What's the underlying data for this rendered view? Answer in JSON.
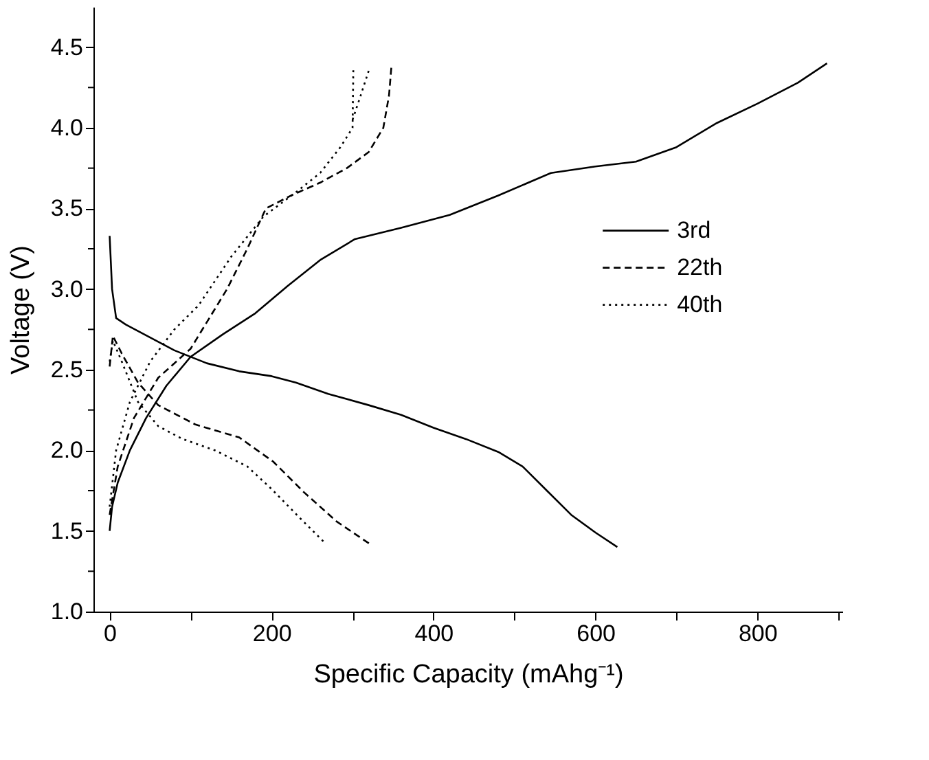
{
  "chart_data": {
    "type": "line",
    "xlabel": "Specific Capacity (mAhg⁻¹)",
    "ylabel": "Voltage (V)",
    "xlim": [
      -20,
      905
    ],
    "ylim": [
      1.0,
      4.75
    ],
    "xticks": [
      0,
      {
        "value": 100,
        "label": null
      },
      200,
      {
        "value": 300,
        "label": null
      },
      400,
      {
        "value": 500,
        "label": null
      },
      600,
      {
        "value": 700,
        "label": null
      },
      800,
      {
        "value": 900,
        "label": null
      }
    ],
    "yticks": [
      {
        "value": 1.0,
        "label": "1.0"
      },
      {
        "value": 1.25,
        "label": null
      },
      1.5,
      {
        "value": 1.75,
        "label": null
      },
      {
        "value": 2.0,
        "label": "2.0"
      },
      {
        "value": 2.25,
        "label": null
      },
      2.5,
      {
        "value": 2.75,
        "label": null
      },
      {
        "value": 3.0,
        "label": "3.0"
      },
      {
        "value": 3.25,
        "label": null
      },
      3.5,
      {
        "value": 3.75,
        "label": null
      },
      {
        "value": 4.0,
        "label": "4.0"
      },
      {
        "value": 4.25,
        "label": null
      },
      4.5
    ],
    "grid": false,
    "legend": "right",
    "marker": "none",
    "series": [
      {
        "name": "3rd",
        "color": "#000000",
        "line_style": "solid",
        "x": [
          0,
          3,
          8,
          20,
          50,
          80,
          120,
          160,
          200,
          230,
          270,
          320,
          360,
          400,
          440,
          480,
          510,
          540,
          570,
          600,
          627,
          null,
          0,
          3,
          10,
          25,
          45,
          70,
          100,
          140,
          180,
          220,
          260,
          303,
          360,
          420,
          480,
          545,
          600,
          650,
          700,
          750,
          800,
          850,
          886
        ],
        "values": [
          3.33,
          3.0,
          2.82,
          2.78,
          2.7,
          2.62,
          2.54,
          2.49,
          2.46,
          2.42,
          2.35,
          2.28,
          2.22,
          2.14,
          2.07,
          1.99,
          1.9,
          1.75,
          1.6,
          1.49,
          1.4,
          null,
          1.5,
          1.65,
          1.8,
          2.0,
          2.2,
          2.4,
          2.58,
          2.72,
          2.85,
          3.02,
          3.18,
          3.31,
          3.38,
          3.46,
          3.58,
          3.72,
          3.76,
          3.79,
          3.88,
          4.03,
          4.15,
          4.28,
          4.4
        ]
      },
      {
        "name": "22th",
        "color": "#000000",
        "line_style": "dashed",
        "x": [
          0,
          4,
          15,
          35,
          60,
          106,
          160,
          202,
          240,
          280,
          324,
          null,
          0,
          10,
          30,
          60,
          100,
          145,
          170,
          193,
          224,
          260,
          293,
          320,
          338,
          345,
          348
        ],
        "values": [
          2.52,
          2.71,
          2.6,
          2.42,
          2.28,
          2.16,
          2.08,
          1.93,
          1.74,
          1.56,
          1.41,
          null,
          1.6,
          1.9,
          2.2,
          2.45,
          2.63,
          3.0,
          3.25,
          3.5,
          3.58,
          3.66,
          3.75,
          3.85,
          4.0,
          4.2,
          4.38
        ]
      },
      {
        "name": "40th",
        "color": "#000000",
        "line_style": "dotted",
        "x": [
          0,
          4,
          15,
          35,
          60,
          90,
          130,
          170,
          200,
          235,
          265,
          null,
          0,
          8,
          25,
          50,
          80,
          110,
          150,
          190,
          230,
          260,
          285,
          300,
          301,
          null,
          300,
          310,
          321
        ],
        "values": [
          2.55,
          2.68,
          2.55,
          2.3,
          2.15,
          2.07,
          2.0,
          1.9,
          1.76,
          1.58,
          1.43,
          null,
          1.65,
          2.0,
          2.3,
          2.55,
          2.75,
          2.9,
          3.2,
          3.45,
          3.6,
          3.72,
          3.88,
          4.0,
          4.38,
          null,
          4.05,
          4.2,
          4.37
        ]
      }
    ]
  }
}
